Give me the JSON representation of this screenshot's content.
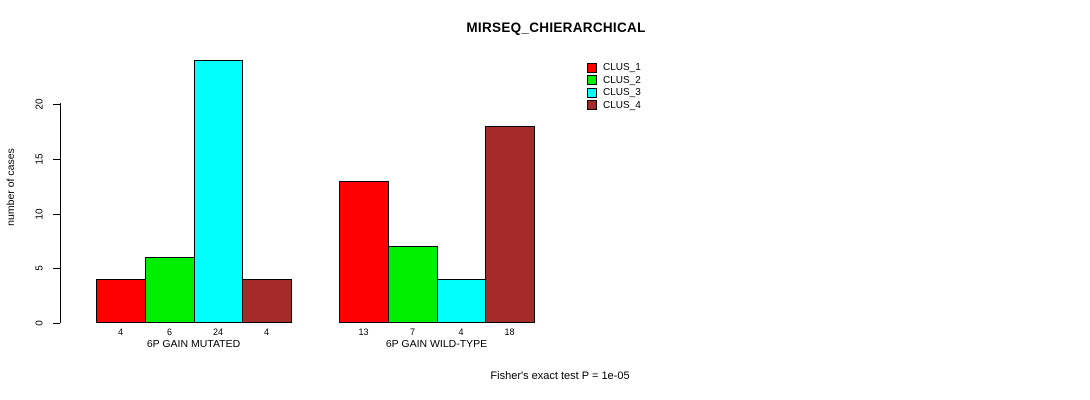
{
  "title": "MIRSEQ_CHIERARCHICAL",
  "footer": "Fisher's exact test P = 1e-05",
  "chart_data": {
    "type": "bar",
    "title": "MIRSEQ_CHIERARCHICAL",
    "ylabel": "number of cases",
    "xlabel": "",
    "yticks": [
      0,
      5,
      10,
      15,
      20
    ],
    "ylim": [
      0,
      24
    ],
    "grid": false,
    "legend_position": "top-right",
    "value_labels_shown": true,
    "categories": [
      "6P GAIN MUTATED",
      "6P GAIN WILD-TYPE"
    ],
    "series": [
      {
        "name": "CLUS_1",
        "color": "#ff0000",
        "values": [
          4,
          13
        ]
      },
      {
        "name": "CLUS_2",
        "color": "#00ee00",
        "values": [
          6,
          7
        ]
      },
      {
        "name": "CLUS_3",
        "color": "#00ffff",
        "values": [
          24,
          4
        ]
      },
      {
        "name": "CLUS_4",
        "color": "#a52a2a",
        "values": [
          4,
          18
        ]
      }
    ],
    "annotation": "Fisher's exact test P = 1e-05"
  }
}
